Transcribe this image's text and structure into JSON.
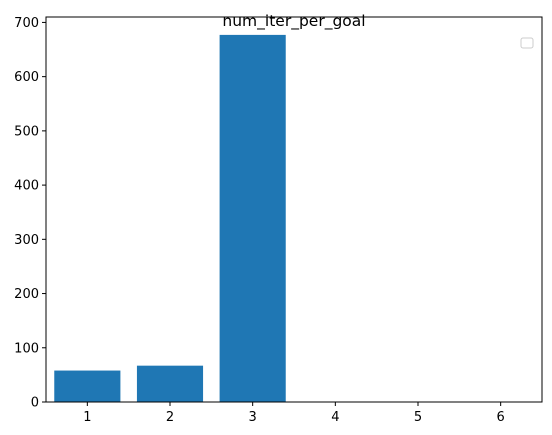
{
  "chart_data": {
    "type": "bar",
    "title": "num_iter_per_goal",
    "xlabel": "",
    "ylabel": "",
    "categories": [
      "1",
      "2",
      "3",
      "4",
      "5",
      "6"
    ],
    "x": [
      1,
      2,
      3,
      4,
      5,
      6
    ],
    "values": [
      58,
      67,
      677,
      0,
      0,
      0
    ],
    "xlim": [
      0.5,
      6.5
    ],
    "ylim": [
      0,
      710
    ],
    "yticks": [
      0,
      100,
      200,
      300,
      400,
      500,
      600,
      700
    ],
    "bar_color": "#1f77b4",
    "grid": false,
    "legend": {
      "placement": "top-right",
      "entries": []
    }
  }
}
